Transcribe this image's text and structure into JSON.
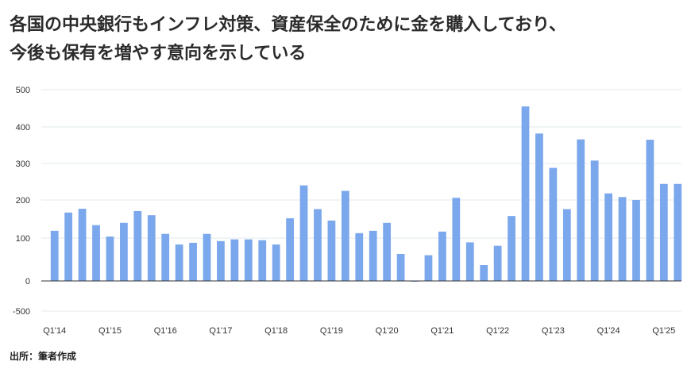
{
  "title": {
    "line1": "各国の中央銀行もインフレ対策、資産保全のために金を購入しており、",
    "line2": "今後も保有を増やす意向を示している"
  },
  "source": "出所：筆者作成",
  "colors": {
    "bar": "#7BA7EC",
    "grid": "#E3E8EE",
    "axis": "#333333"
  },
  "chart_data": {
    "type": "bar",
    "ylim": [
      -500,
      500
    ],
    "grid": true,
    "yticks": [
      500,
      400,
      300,
      200,
      100,
      0,
      -500
    ],
    "categories": [
      "Q1'14",
      "Q2'14",
      "Q3'14",
      "Q4'14",
      "Q1'15",
      "Q2'15",
      "Q3'15",
      "Q4'15",
      "Q1'16",
      "Q2'16",
      "Q3'16",
      "Q4'16",
      "Q1'17",
      "Q2'17",
      "Q3'17",
      "Q4'17",
      "Q1'18",
      "Q2'18",
      "Q3'18",
      "Q4'18",
      "Q1'19",
      "Q2'19",
      "Q3'19",
      "Q4'19",
      "Q1'20",
      "Q2'20",
      "Q3'20",
      "Q4'20",
      "Q1'21",
      "Q2'21",
      "Q3'21",
      "Q4'21",
      "Q1'22",
      "Q2'22",
      "Q3'22",
      "Q4'22",
      "Q1'23",
      "Q2'23",
      "Q3'23",
      "Q4'23",
      "Q1'24",
      "Q2'24",
      "Q3'24",
      "Q4'24",
      "Q1'25",
      "Q2'25"
    ],
    "xtick_labels": [
      "Q1'14",
      "Q1'15",
      "Q1'16",
      "Q1'17",
      "Q1'18",
      "Q1'19",
      "Q1'20",
      "Q1'21",
      "Q1'22",
      "Q1'23",
      "Q1'24",
      "Q1'25"
    ],
    "values": [
      119,
      167,
      177,
      134,
      104,
      140,
      171,
      160,
      111,
      85,
      89,
      111,
      93,
      97,
      97,
      95,
      85,
      152,
      240,
      176,
      146,
      225,
      113,
      119,
      140,
      63,
      -10,
      60,
      117,
      206,
      90,
      37,
      82,
      158,
      455,
      382,
      288,
      176,
      366,
      308,
      218,
      208,
      200,
      365,
      244,
      244
    ]
  }
}
